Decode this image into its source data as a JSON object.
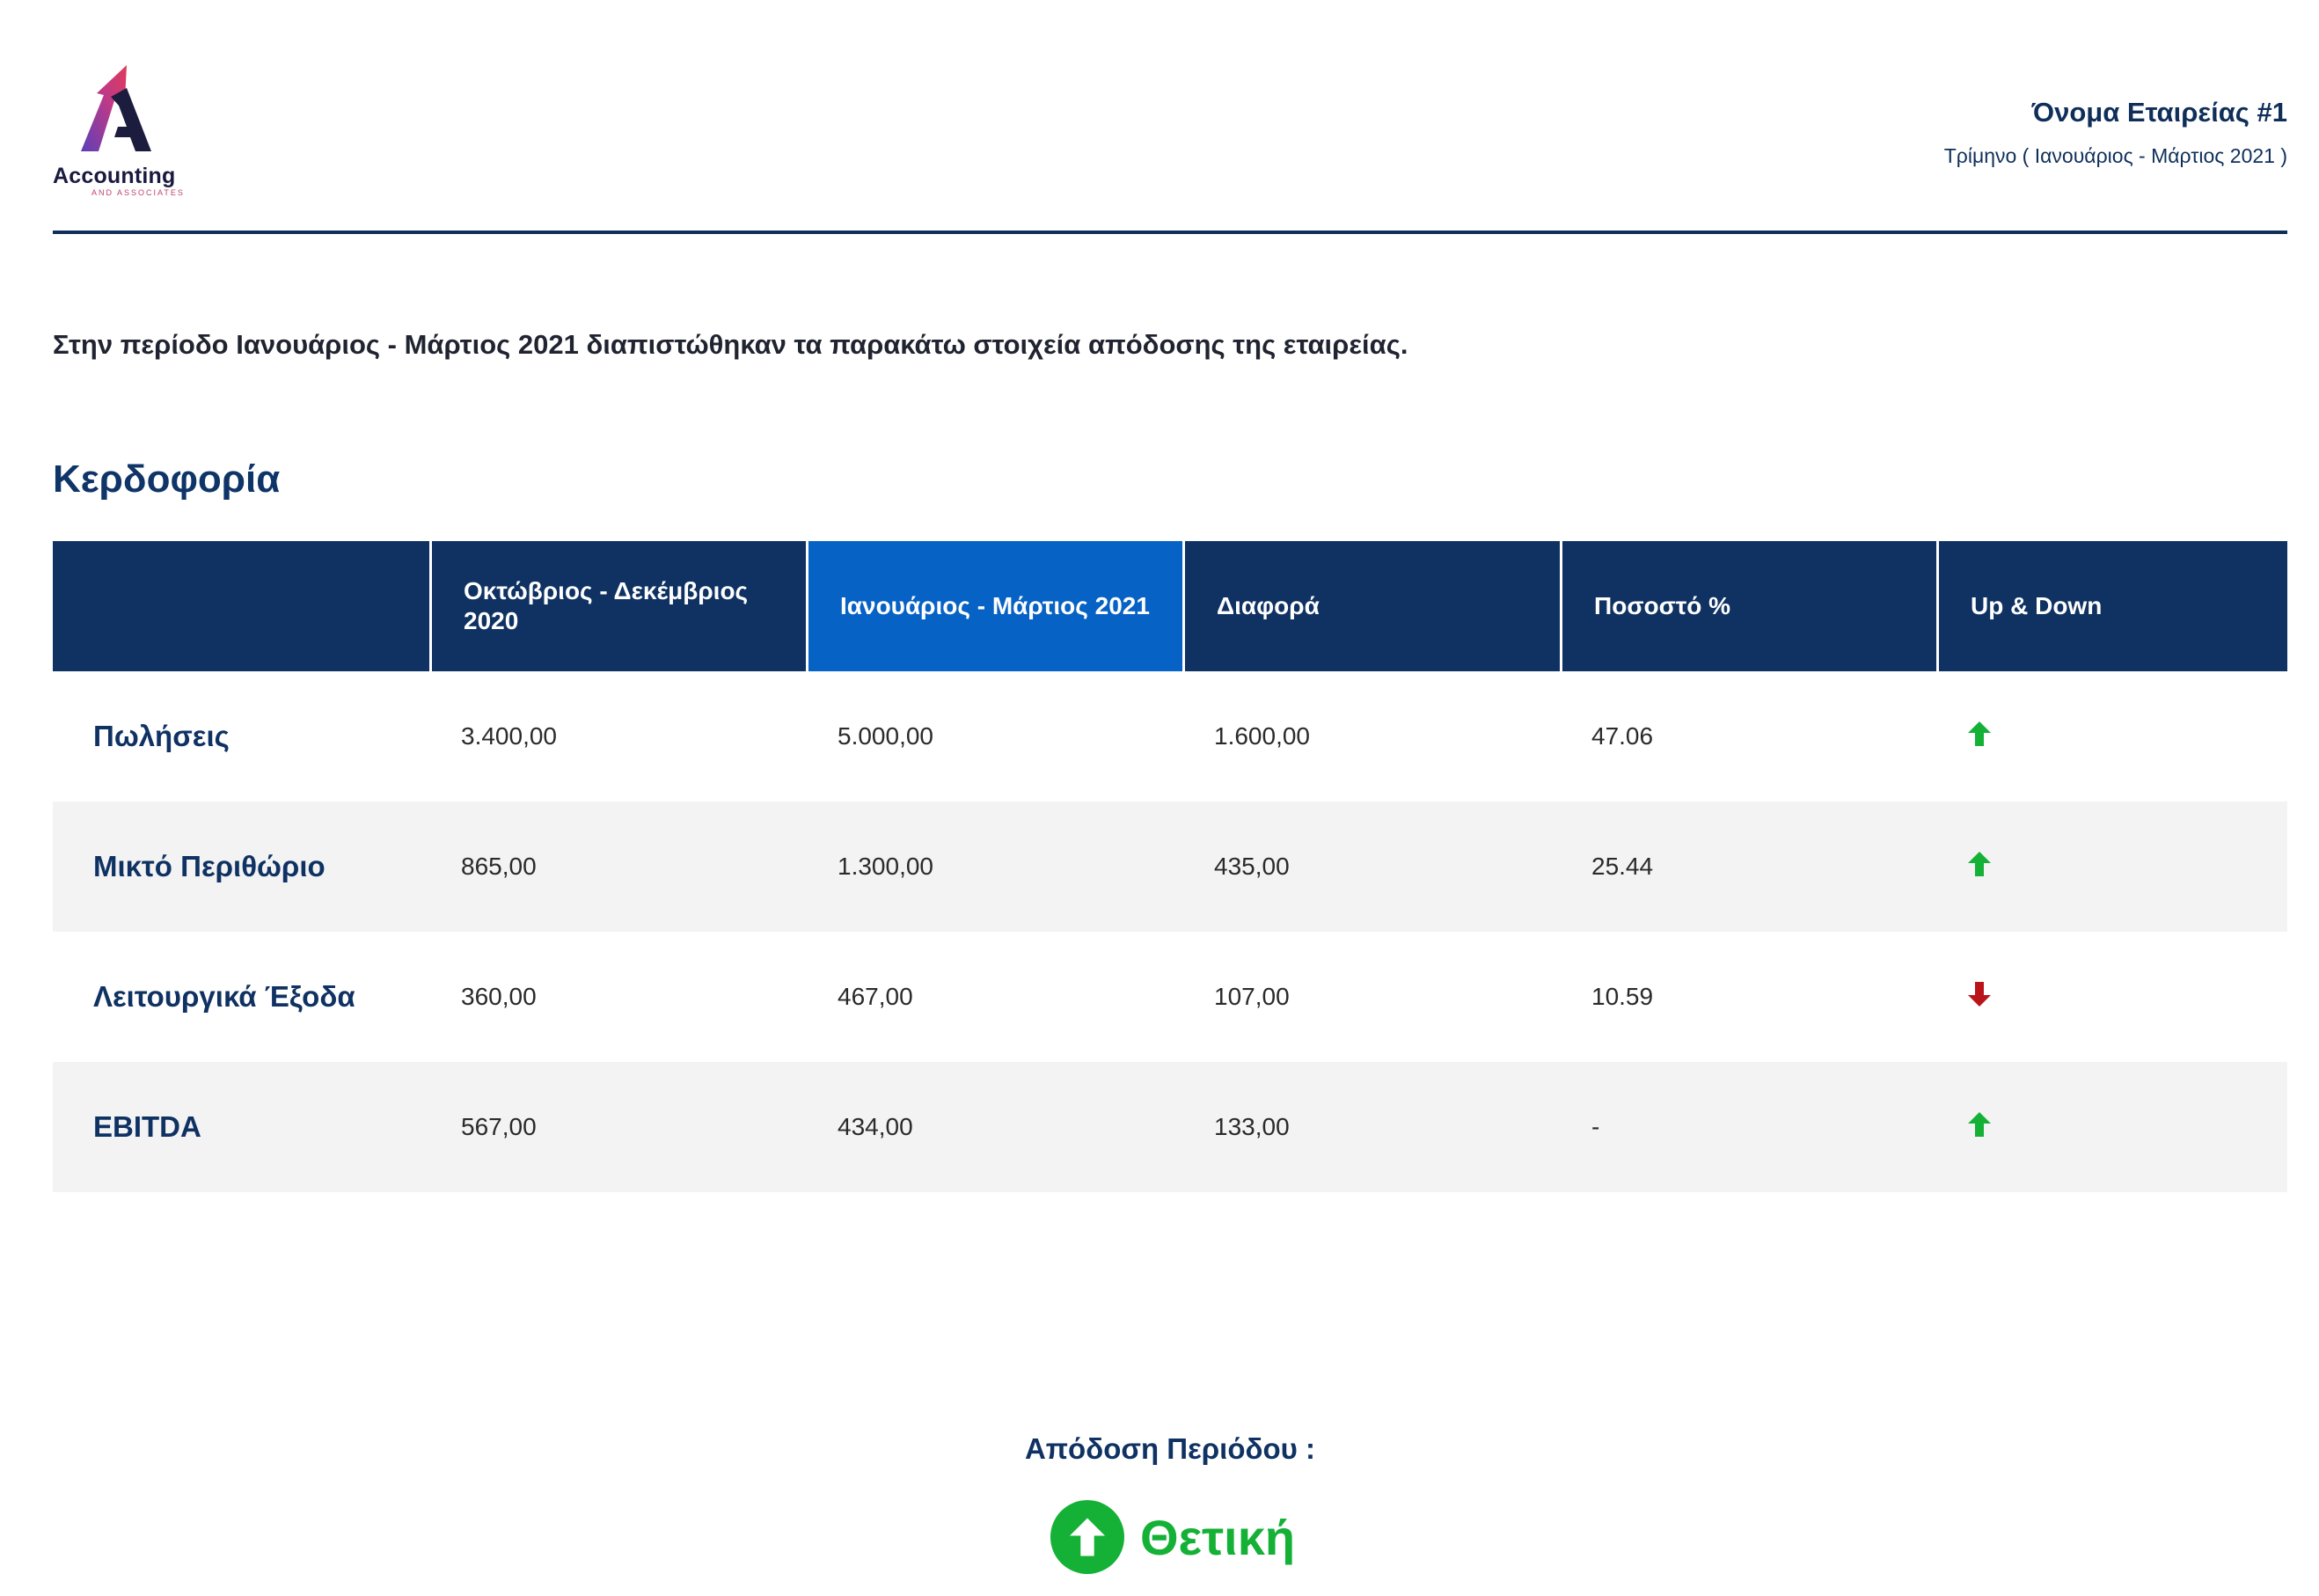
{
  "logo": {
    "title": "Accounting",
    "subtitle": "AND ASSOCIATES"
  },
  "company": {
    "name": "Όνομα Εταιρείας #1",
    "period": "Τρίμηνο ( Ιανουάριος - Μάρτιος 2021 )"
  },
  "intro": "Στην περίοδο Ιανουάριος - Μάρτιος 2021 διαπιστώθηκαν τα παρακάτω στοιχεία απόδοσης της εταιρείας.",
  "section_title": "Κερδοφορία",
  "table": {
    "headers": [
      "",
      "Οκτώβριος - Δεκέμβριος 2020",
      "Ιανουάριος - Μάρτιος 2021",
      "Διαφορά",
      "Ποσοστό %",
      "Up & Down"
    ],
    "rows": [
      {
        "label": "Πωλήσεις",
        "prev": "3.400,00",
        "curr": "5.000,00",
        "diff": "1.600,00",
        "pct": "47.06",
        "trend": "up"
      },
      {
        "label": "Μικτό Περιθώριο",
        "prev": "865,00",
        "curr": "1.300,00",
        "diff": "435,00",
        "pct": "25.44",
        "trend": "up"
      },
      {
        "label": "Λειτουργικά Έξοδα",
        "prev": "360,00",
        "curr": "467,00",
        "diff": "107,00",
        "pct": "10.59",
        "trend": "down"
      },
      {
        "label": "EBITDA",
        "prev": "567,00",
        "curr": "434,00",
        "diff": "133,00",
        "pct": "-",
        "trend": "up"
      }
    ]
  },
  "performance": {
    "label": "Απόδοση Περιόδου :",
    "value": "Θετική",
    "icon": "arrow-up-circle-icon"
  },
  "colors": {
    "navy": "#0f3263",
    "active_header": "#0762c5",
    "up": "#14b136",
    "down": "#b8141a"
  }
}
